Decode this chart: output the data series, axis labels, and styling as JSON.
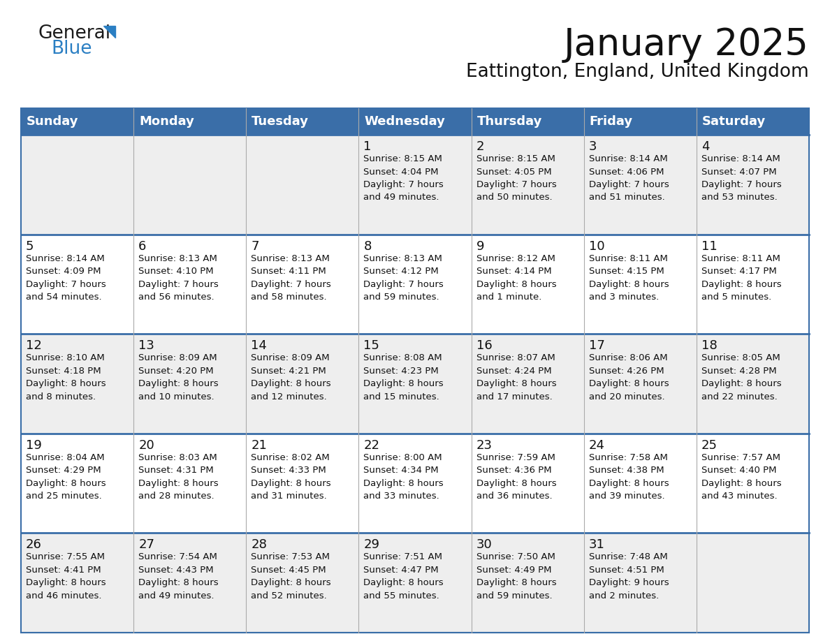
{
  "title": "January 2025",
  "subtitle": "Eattington, England, United Kingdom",
  "days_of_week": [
    "Sunday",
    "Monday",
    "Tuesday",
    "Wednesday",
    "Thursday",
    "Friday",
    "Saturday"
  ],
  "header_bg": "#3A6EA8",
  "header_text": "#FFFFFF",
  "row_bg_odd": "#EEEEEE",
  "row_bg_even": "#FFFFFF",
  "divider_color": "#3A6EA8",
  "border_color": "#3A6EA8",
  "title_color": "#111111",
  "subtitle_color": "#111111",
  "logo_general_color": "#1a1a1a",
  "logo_blue_color": "#2B7FC3",
  "day_num_color": "#111111",
  "info_color": "#111111",
  "weeks": [
    [
      {
        "day": "",
        "info": ""
      },
      {
        "day": "",
        "info": ""
      },
      {
        "day": "",
        "info": ""
      },
      {
        "day": "1",
        "info": "Sunrise: 8:15 AM\nSunset: 4:04 PM\nDaylight: 7 hours\nand 49 minutes."
      },
      {
        "day": "2",
        "info": "Sunrise: 8:15 AM\nSunset: 4:05 PM\nDaylight: 7 hours\nand 50 minutes."
      },
      {
        "day": "3",
        "info": "Sunrise: 8:14 AM\nSunset: 4:06 PM\nDaylight: 7 hours\nand 51 minutes."
      },
      {
        "day": "4",
        "info": "Sunrise: 8:14 AM\nSunset: 4:07 PM\nDaylight: 7 hours\nand 53 minutes."
      }
    ],
    [
      {
        "day": "5",
        "info": "Sunrise: 8:14 AM\nSunset: 4:09 PM\nDaylight: 7 hours\nand 54 minutes."
      },
      {
        "day": "6",
        "info": "Sunrise: 8:13 AM\nSunset: 4:10 PM\nDaylight: 7 hours\nand 56 minutes."
      },
      {
        "day": "7",
        "info": "Sunrise: 8:13 AM\nSunset: 4:11 PM\nDaylight: 7 hours\nand 58 minutes."
      },
      {
        "day": "8",
        "info": "Sunrise: 8:13 AM\nSunset: 4:12 PM\nDaylight: 7 hours\nand 59 minutes."
      },
      {
        "day": "9",
        "info": "Sunrise: 8:12 AM\nSunset: 4:14 PM\nDaylight: 8 hours\nand 1 minute."
      },
      {
        "day": "10",
        "info": "Sunrise: 8:11 AM\nSunset: 4:15 PM\nDaylight: 8 hours\nand 3 minutes."
      },
      {
        "day": "11",
        "info": "Sunrise: 8:11 AM\nSunset: 4:17 PM\nDaylight: 8 hours\nand 5 minutes."
      }
    ],
    [
      {
        "day": "12",
        "info": "Sunrise: 8:10 AM\nSunset: 4:18 PM\nDaylight: 8 hours\nand 8 minutes."
      },
      {
        "day": "13",
        "info": "Sunrise: 8:09 AM\nSunset: 4:20 PM\nDaylight: 8 hours\nand 10 minutes."
      },
      {
        "day": "14",
        "info": "Sunrise: 8:09 AM\nSunset: 4:21 PM\nDaylight: 8 hours\nand 12 minutes."
      },
      {
        "day": "15",
        "info": "Sunrise: 8:08 AM\nSunset: 4:23 PM\nDaylight: 8 hours\nand 15 minutes."
      },
      {
        "day": "16",
        "info": "Sunrise: 8:07 AM\nSunset: 4:24 PM\nDaylight: 8 hours\nand 17 minutes."
      },
      {
        "day": "17",
        "info": "Sunrise: 8:06 AM\nSunset: 4:26 PM\nDaylight: 8 hours\nand 20 minutes."
      },
      {
        "day": "18",
        "info": "Sunrise: 8:05 AM\nSunset: 4:28 PM\nDaylight: 8 hours\nand 22 minutes."
      }
    ],
    [
      {
        "day": "19",
        "info": "Sunrise: 8:04 AM\nSunset: 4:29 PM\nDaylight: 8 hours\nand 25 minutes."
      },
      {
        "day": "20",
        "info": "Sunrise: 8:03 AM\nSunset: 4:31 PM\nDaylight: 8 hours\nand 28 minutes."
      },
      {
        "day": "21",
        "info": "Sunrise: 8:02 AM\nSunset: 4:33 PM\nDaylight: 8 hours\nand 31 minutes."
      },
      {
        "day": "22",
        "info": "Sunrise: 8:00 AM\nSunset: 4:34 PM\nDaylight: 8 hours\nand 33 minutes."
      },
      {
        "day": "23",
        "info": "Sunrise: 7:59 AM\nSunset: 4:36 PM\nDaylight: 8 hours\nand 36 minutes."
      },
      {
        "day": "24",
        "info": "Sunrise: 7:58 AM\nSunset: 4:38 PM\nDaylight: 8 hours\nand 39 minutes."
      },
      {
        "day": "25",
        "info": "Sunrise: 7:57 AM\nSunset: 4:40 PM\nDaylight: 8 hours\nand 43 minutes."
      }
    ],
    [
      {
        "day": "26",
        "info": "Sunrise: 7:55 AM\nSunset: 4:41 PM\nDaylight: 8 hours\nand 46 minutes."
      },
      {
        "day": "27",
        "info": "Sunrise: 7:54 AM\nSunset: 4:43 PM\nDaylight: 8 hours\nand 49 minutes."
      },
      {
        "day": "28",
        "info": "Sunrise: 7:53 AM\nSunset: 4:45 PM\nDaylight: 8 hours\nand 52 minutes."
      },
      {
        "day": "29",
        "info": "Sunrise: 7:51 AM\nSunset: 4:47 PM\nDaylight: 8 hours\nand 55 minutes."
      },
      {
        "day": "30",
        "info": "Sunrise: 7:50 AM\nSunset: 4:49 PM\nDaylight: 8 hours\nand 59 minutes."
      },
      {
        "day": "31",
        "info": "Sunrise: 7:48 AM\nSunset: 4:51 PM\nDaylight: 9 hours\nand 2 minutes."
      },
      {
        "day": "",
        "info": ""
      }
    ]
  ]
}
